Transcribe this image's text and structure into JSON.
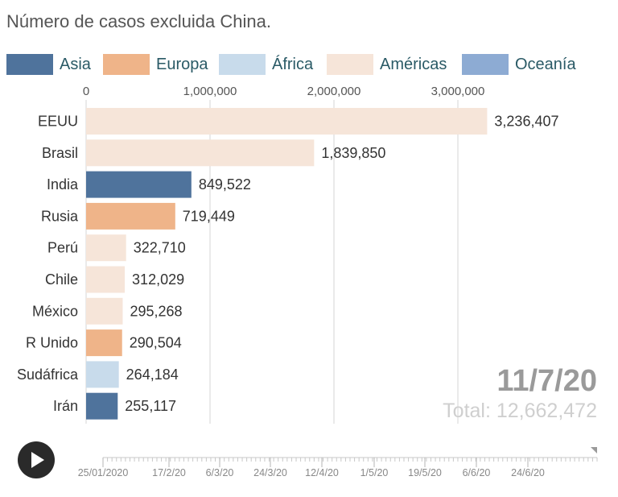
{
  "title": "Número de casos excluida China.",
  "colors": {
    "Asia": "#4f739c",
    "Europa": "#efb489",
    "África": "#c8dbeb",
    "Américas": "#f6e5d9",
    "Oceanía": "#8dabd3"
  },
  "legend": [
    {
      "label": "Asia",
      "color": "#4f739c"
    },
    {
      "label": "Europa",
      "color": "#efb489"
    },
    {
      "label": "África",
      "color": "#c8dbeb"
    },
    {
      "label": "Américas",
      "color": "#f6e5d9"
    },
    {
      "label": "Oceanía",
      "color": "#8dabd3"
    }
  ],
  "chart_data": {
    "type": "bar",
    "orientation": "horizontal",
    "title": "Número de casos excluida China.",
    "categories": [
      "EEUU",
      "Brasil",
      "India",
      "Rusia",
      "Perú",
      "Chile",
      "México",
      "R Unido",
      "Sudáfrica",
      "Irán"
    ],
    "values": [
      3236407,
      1839850,
      849522,
      719449,
      322710,
      312029,
      295268,
      290504,
      264184,
      255117
    ],
    "value_labels": [
      "3,236,407",
      "1,839,850",
      "849,522",
      "719,449",
      "322,710",
      "312,029",
      "295,268",
      "290,504",
      "264,184",
      "255,117"
    ],
    "regions": [
      "Américas",
      "Américas",
      "Asia",
      "Europa",
      "Américas",
      "Américas",
      "Américas",
      "Europa",
      "África",
      "Asia"
    ],
    "xlim": [
      0,
      4000000
    ],
    "ticks": [
      0,
      1000000,
      2000000,
      3000000
    ],
    "tick_labels": [
      "0",
      "1,000,000",
      "2,000,000",
      "3,000,000"
    ],
    "grid": true,
    "legend_position": "top",
    "axis_position": "top"
  },
  "date": "11/7/20",
  "total": "Total: 12,662,472",
  "timeline": {
    "labels": [
      "25/01/2020",
      "17/2/20",
      "6/3/20",
      "24/3/20",
      "12/4/20",
      "1/5/20",
      "19/5/20",
      "6/6/20",
      "24/6/20"
    ],
    "progress": 1.0
  },
  "controls": {
    "play": "play-icon"
  }
}
